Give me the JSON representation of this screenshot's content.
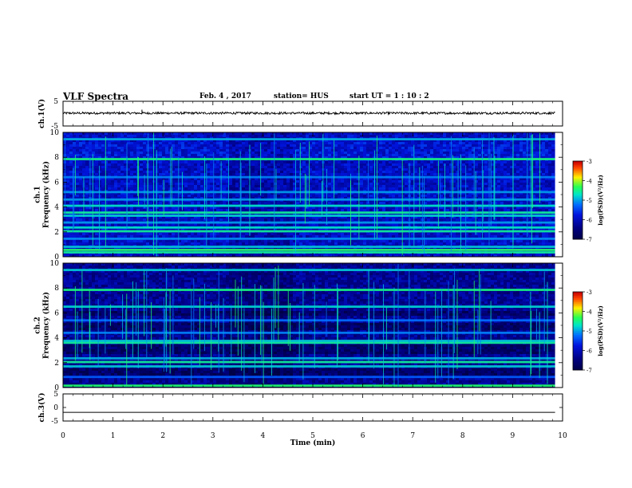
{
  "header": {
    "title": "VLF Spectra",
    "date": "Feb. 4 , 2017",
    "station": "station= HUS",
    "start_ut": "start  UT =   1 : 10 : 2"
  },
  "chart_data": [
    {
      "type": "line",
      "name": "ch1-waveform",
      "ylabel": "ch.1(V)",
      "ylim": [
        -5,
        5
      ],
      "yticks": [
        "5",
        "-5"
      ],
      "baseline": 0.2,
      "spikes": [
        {
          "x": 1.58,
          "y": 1.4
        }
      ]
    },
    {
      "type": "heatmap",
      "name": "ch1-spectrogram",
      "ylabel": "ch.1\nFrequency (kHz)",
      "ylim": [
        0,
        10
      ],
      "yticks": [
        "0",
        "2",
        "4",
        "6",
        "8",
        "10"
      ],
      "xlim": [
        0,
        9.85
      ],
      "bands_khz": [
        {
          "f": 0.35,
          "level": 0.62
        },
        {
          "f": 0.55,
          "level": 0.66
        },
        {
          "f": 0.8,
          "level": 0.55
        },
        {
          "f": 1.45,
          "level": 0.48
        },
        {
          "f": 2.05,
          "level": 0.62
        },
        {
          "f": 2.35,
          "level": 0.58
        },
        {
          "f": 2.75,
          "level": 0.5
        },
        {
          "f": 3.3,
          "level": 0.56
        },
        {
          "f": 3.55,
          "level": 0.62
        },
        {
          "f": 4.1,
          "level": 0.58
        },
        {
          "f": 4.6,
          "level": 0.5
        },
        {
          "f": 5.2,
          "level": 0.5
        },
        {
          "f": 6.4,
          "level": 0.47
        },
        {
          "f": 7.85,
          "level": 0.64
        },
        {
          "f": 9.45,
          "level": 0.52
        }
      ],
      "colorbar": {
        "label": "log(PSD)(V²/Hz)",
        "ticks": [
          "-3",
          "-4",
          "-5",
          "-6",
          "-7"
        ]
      }
    },
    {
      "type": "heatmap",
      "name": "ch2-spectrogram",
      "ylabel": "ch.2\nFrequency (kHz)",
      "ylim": [
        0,
        10
      ],
      "yticks": [
        "0",
        "2",
        "4",
        "6",
        "8",
        "10"
      ],
      "xlim": [
        0,
        9.85
      ],
      "bands_khz": [
        {
          "f": 0.15,
          "level": 0.66
        },
        {
          "f": 0.85,
          "level": 0.42
        },
        {
          "f": 1.7,
          "level": 0.55
        },
        {
          "f": 2.05,
          "level": 0.62
        },
        {
          "f": 2.35,
          "level": 0.52
        },
        {
          "f": 3.6,
          "level": 0.62
        },
        {
          "f": 3.75,
          "level": 0.55
        },
        {
          "f": 4.4,
          "level": 0.47
        },
        {
          "f": 5.4,
          "level": 0.45
        },
        {
          "f": 6.5,
          "level": 0.56
        },
        {
          "f": 7.85,
          "level": 0.64
        },
        {
          "f": 9.45,
          "level": 0.55
        }
      ],
      "colorbar": {
        "label": "log(PSD)(V²/Hz)",
        "ticks": [
          "-3",
          "-4",
          "-5",
          "-6",
          "-7"
        ]
      }
    },
    {
      "type": "line",
      "name": "ch3-waveform",
      "ylabel": "ch.3(V)",
      "ylim": [
        -5,
        5
      ],
      "yticks": [
        "5",
        "0",
        "-5"
      ],
      "baseline": -1.8
    }
  ],
  "xaxis": {
    "label": "Time (min)",
    "ticks": [
      "0",
      "1",
      "2",
      "3",
      "4",
      "5",
      "6",
      "7",
      "8",
      "9",
      "10"
    ],
    "range": [
      0,
      10
    ]
  }
}
